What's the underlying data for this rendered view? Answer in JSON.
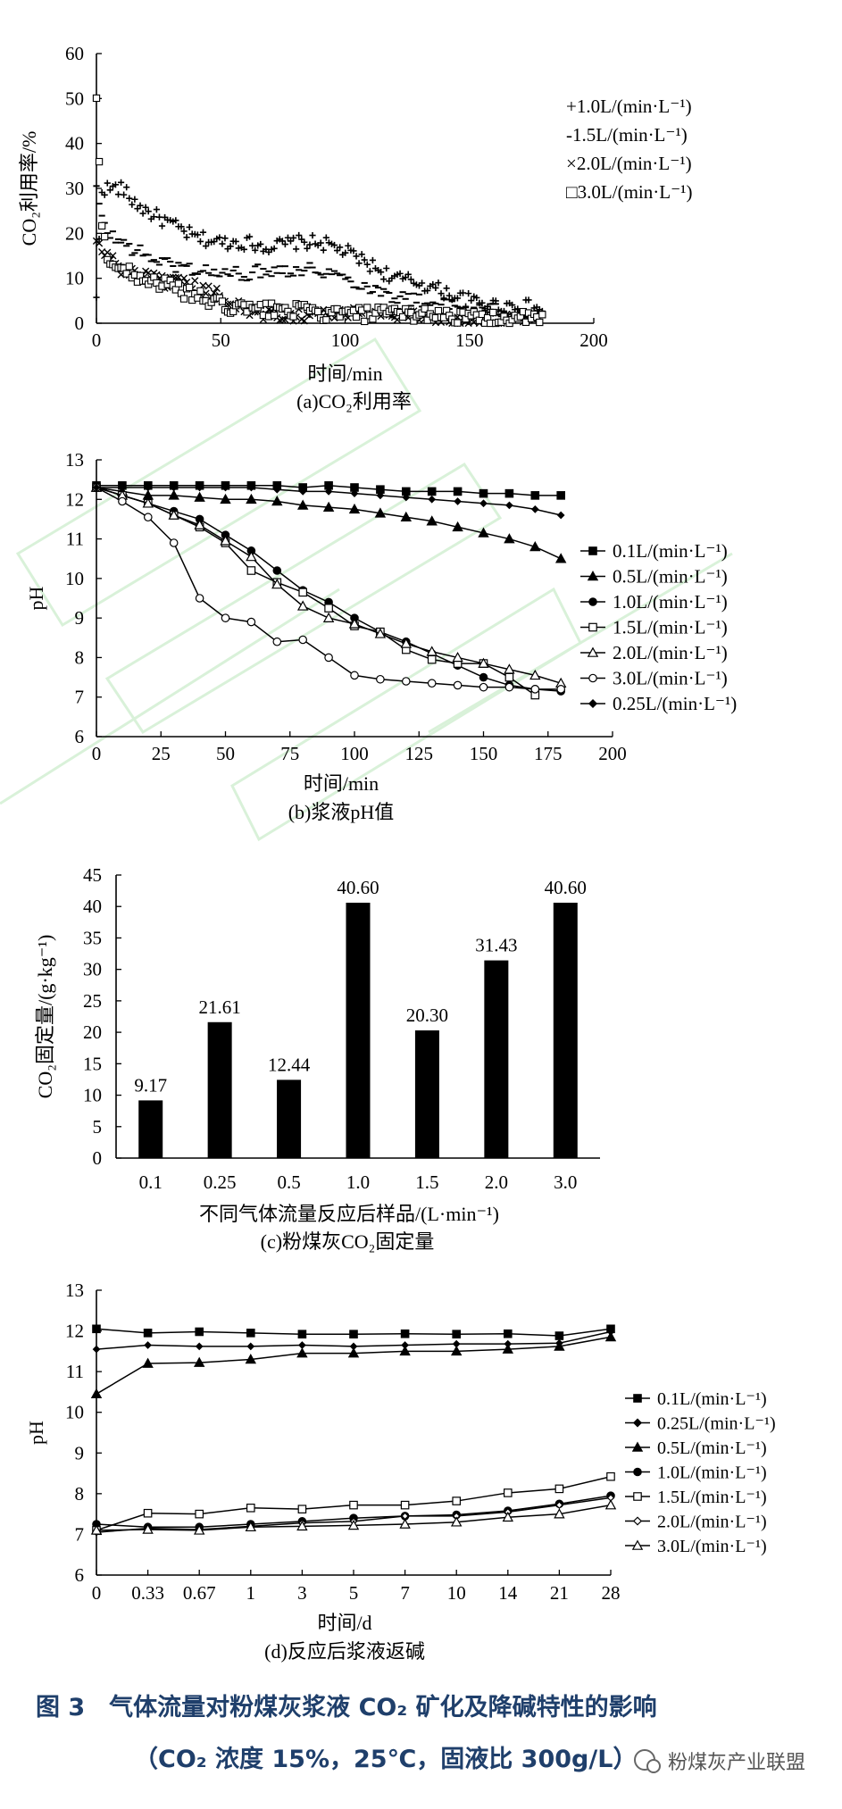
{
  "chart_data": [
    {
      "type": "scatter",
      "panel_label": "(a)CO₂利用率",
      "ylabel": "CO₂利用率/%",
      "xlabel": "时间/min",
      "xlim": [
        0,
        200
      ],
      "ylim": [
        0,
        60
      ],
      "xticks": [
        "0",
        "50",
        "100",
        "150",
        "200"
      ],
      "yticks": [
        "0",
        "10",
        "20",
        "30",
        "40",
        "50",
        "60"
      ],
      "legend": [
        "+1.0L/(min·L⁻¹)",
        "-1.5L/(min·L⁻¹)",
        "×2.0L/(min·L⁻¹)",
        "□3.0L/(min·L⁻¹)"
      ],
      "series": [
        {
          "name": "1.0L/(min·L⁻¹)",
          "marker": "+",
          "x": [
            0,
            2,
            5,
            10,
            15,
            20,
            30,
            40,
            50,
            60,
            70,
            80,
            90,
            100,
            110,
            120,
            130,
            140,
            150,
            160,
            170,
            180
          ],
          "y": [
            5,
            30,
            30,
            30,
            27,
            25,
            22,
            19,
            18,
            18,
            17,
            18,
            18,
            16,
            13,
            10,
            9,
            7,
            5,
            4,
            4,
            3
          ]
        },
        {
          "name": "1.5L/(min·L⁻¹)",
          "marker": "-",
          "x": [
            0,
            2,
            5,
            10,
            20,
            30,
            40,
            50,
            60,
            70,
            80,
            90,
            100,
            110,
            120,
            130,
            140,
            150,
            160,
            170,
            180
          ],
          "y": [
            30,
            23,
            20,
            18,
            15,
            13,
            12,
            11,
            11,
            12,
            12,
            12,
            10,
            8,
            6,
            5,
            4,
            3,
            3,
            2,
            2
          ]
        },
        {
          "name": "2.0L/(min·L⁻¹)",
          "marker": "×",
          "x": [
            0,
            2,
            5,
            10,
            20,
            30,
            40,
            50,
            60,
            70,
            80,
            90,
            100,
            110,
            120,
            130,
            140,
            150,
            160,
            170,
            180
          ],
          "y": [
            18,
            16,
            15,
            12,
            10,
            9,
            8,
            6,
            3,
            2,
            2,
            2,
            2,
            2,
            2,
            2,
            1,
            1,
            1,
            1,
            1
          ]
        },
        {
          "name": "3.0L/(min·L⁻¹)",
          "marker": "□",
          "x": [
            0,
            2,
            5,
            10,
            20,
            30,
            40,
            50,
            60,
            70,
            80,
            90,
            100,
            110,
            120,
            130,
            140,
            150,
            160,
            170,
            180
          ],
          "y": [
            50,
            22,
            14,
            12,
            10,
            8,
            6,
            4,
            3,
            3,
            3,
            2,
            2,
            2,
            2,
            2,
            2,
            1,
            1,
            1,
            1
          ]
        }
      ]
    },
    {
      "type": "line",
      "panel_label": "(b)浆液pH值",
      "ylabel": "pH",
      "xlabel": "时间/min",
      "xlim": [
        0,
        200
      ],
      "ylim": [
        6,
        13
      ],
      "xticks": [
        "0",
        "25",
        "50",
        "75",
        "100",
        "125",
        "150",
        "175",
        "200"
      ],
      "yticks": [
        "6",
        "7",
        "8",
        "9",
        "10",
        "11",
        "12",
        "13"
      ],
      "series": [
        {
          "name": "0.1L/(min·L⁻¹)",
          "marker": "square-filled",
          "x": [
            0,
            10,
            20,
            30,
            40,
            50,
            60,
            70,
            80,
            90,
            100,
            110,
            120,
            130,
            140,
            150,
            160,
            170,
            180
          ],
          "y": [
            12.35,
            12.35,
            12.35,
            12.35,
            12.35,
            12.35,
            12.35,
            12.35,
            12.3,
            12.35,
            12.3,
            12.25,
            12.2,
            12.2,
            12.2,
            12.15,
            12.15,
            12.1,
            12.1
          ]
        },
        {
          "name": "0.5L/(min·L⁻¹)",
          "marker": "triangle-filled",
          "x": [
            0,
            10,
            20,
            30,
            40,
            50,
            60,
            70,
            80,
            90,
            100,
            110,
            120,
            130,
            140,
            150,
            160,
            170,
            180
          ],
          "y": [
            12.3,
            12.2,
            12.1,
            12.1,
            12.05,
            12.0,
            12.0,
            11.95,
            11.85,
            11.8,
            11.75,
            11.65,
            11.55,
            11.45,
            11.3,
            11.15,
            11.0,
            10.8,
            10.5
          ]
        },
        {
          "name": "1.0L/(min·L⁻¹)",
          "marker": "circle-filled",
          "x": [
            0,
            10,
            20,
            30,
            40,
            50,
            60,
            70,
            80,
            90,
            100,
            110,
            120,
            130,
            140,
            150,
            160,
            170,
            180
          ],
          "y": [
            12.3,
            12.1,
            11.9,
            11.7,
            11.5,
            11.1,
            10.7,
            10.2,
            9.7,
            9.4,
            9.0,
            8.65,
            8.4,
            8.1,
            7.8,
            7.5,
            7.3,
            7.2,
            7.15
          ]
        },
        {
          "name": "1.5L/(min·L⁻¹)",
          "marker": "square-open",
          "x": [
            0,
            10,
            20,
            30,
            40,
            50,
            60,
            70,
            80,
            90,
            100,
            110,
            120,
            130,
            140,
            150,
            160,
            170
          ],
          "y": [
            12.3,
            12.1,
            11.9,
            11.6,
            11.3,
            10.9,
            10.2,
            9.9,
            9.65,
            9.25,
            8.8,
            8.65,
            8.2,
            7.95,
            7.85,
            7.85,
            7.5,
            7.05
          ]
        },
        {
          "name": "2.0L/(min·L⁻¹)",
          "marker": "triangle-open",
          "x": [
            0,
            10,
            20,
            30,
            40,
            50,
            60,
            70,
            80,
            90,
            100,
            110,
            120,
            130,
            140,
            150,
            160,
            170,
            180
          ],
          "y": [
            12.3,
            12.1,
            11.9,
            11.6,
            11.35,
            10.95,
            10.55,
            9.85,
            9.3,
            9.0,
            8.85,
            8.6,
            8.35,
            8.15,
            8.0,
            7.85,
            7.7,
            7.55,
            7.35
          ]
        },
        {
          "name": "3.0L/(min·L⁻¹)",
          "marker": "circle-open",
          "x": [
            0,
            10,
            20,
            30,
            40,
            50,
            60,
            70,
            80,
            90,
            100,
            110,
            120,
            130,
            140,
            150,
            160,
            170,
            180
          ],
          "y": [
            12.3,
            11.95,
            11.55,
            10.9,
            9.5,
            9.0,
            8.9,
            8.4,
            8.45,
            8.0,
            7.55,
            7.45,
            7.4,
            7.35,
            7.3,
            7.25,
            7.25,
            7.2,
            7.2
          ]
        },
        {
          "name": "0.25L/(min·L⁻¹)",
          "marker": "diamond-filled",
          "x": [
            0,
            10,
            20,
            30,
            40,
            50,
            60,
            70,
            80,
            90,
            100,
            110,
            120,
            130,
            140,
            150,
            160,
            170,
            180
          ],
          "y": [
            12.3,
            12.3,
            12.3,
            12.3,
            12.3,
            12.3,
            12.3,
            12.25,
            12.2,
            12.2,
            12.15,
            12.1,
            12.05,
            12.0,
            11.95,
            11.9,
            11.85,
            11.75,
            11.6
          ]
        }
      ]
    },
    {
      "type": "bar",
      "panel_label": "(c)粉煤灰CO₂固定量",
      "ylabel": "CO₂固定量/(g·kg⁻¹)",
      "xlabel": "不同气体流量反应后样品/(L·min⁻¹)",
      "ylim": [
        0,
        45
      ],
      "yticks": [
        "0",
        "5",
        "10",
        "15",
        "20",
        "25",
        "30",
        "35",
        "40",
        "45"
      ],
      "categories": [
        "0.1",
        "0.25",
        "0.5",
        "1.0",
        "1.5",
        "2.0",
        "3.0"
      ],
      "values": [
        9.17,
        21.61,
        12.44,
        40.6,
        20.3,
        31.43,
        40.6
      ],
      "value_labels": [
        "9.17",
        "21.61",
        "12.44",
        "40.60",
        "20.30",
        "31.43",
        "40.60"
      ]
    },
    {
      "type": "line",
      "panel_label": "(d)反应后浆液返碱",
      "ylabel": "pH",
      "xlabel": "时间/d",
      "ylim": [
        6,
        13
      ],
      "categories": [
        "0",
        "0.33",
        "0.67",
        "1",
        "3",
        "5",
        "7",
        "10",
        "14",
        "21",
        "28"
      ],
      "yticks": [
        "6",
        "7",
        "8",
        "9",
        "10",
        "11",
        "12",
        "13"
      ],
      "series": [
        {
          "name": "0.1L/(min·L⁻¹)",
          "marker": "square-filled",
          "values": [
            12.05,
            11.95,
            11.98,
            11.95,
            11.92,
            11.92,
            11.93,
            11.92,
            11.93,
            11.88,
            12.05
          ]
        },
        {
          "name": "0.25L/(min·L⁻¹)",
          "marker": "diamond-filled",
          "values": [
            11.55,
            11.65,
            11.62,
            11.62,
            11.65,
            11.62,
            11.65,
            11.68,
            11.68,
            11.7,
            11.98
          ]
        },
        {
          "name": "0.5L/(min·L⁻¹)",
          "marker": "triangle-filled",
          "values": [
            10.45,
            11.2,
            11.22,
            11.3,
            11.45,
            11.45,
            11.5,
            11.5,
            11.55,
            11.62,
            11.85
          ]
        },
        {
          "name": "1.0L/(min·L⁻¹)",
          "marker": "circle-filled",
          "values": [
            7.25,
            7.18,
            7.18,
            7.25,
            7.32,
            7.4,
            7.45,
            7.48,
            7.58,
            7.75,
            7.95
          ]
        },
        {
          "name": "1.5L/(min·L⁻¹)",
          "marker": "square-open",
          "values": [
            7.1,
            7.52,
            7.5,
            7.65,
            7.62,
            7.72,
            7.72,
            7.82,
            8.02,
            8.12,
            8.42
          ]
        },
        {
          "name": "2.0L/(min·L⁻¹)",
          "marker": "diamond-open",
          "values": [
            7.05,
            7.15,
            7.12,
            7.2,
            7.28,
            7.32,
            7.45,
            7.45,
            7.55,
            7.72,
            7.9
          ]
        },
        {
          "name": "3.0L/(min·L⁻¹)",
          "marker": "triangle-open",
          "values": [
            7.1,
            7.12,
            7.1,
            7.18,
            7.2,
            7.22,
            7.25,
            7.3,
            7.42,
            7.5,
            7.72
          ]
        }
      ]
    }
  ],
  "figure": {
    "caption_line1": "图 3　气体流量对粉煤灰浆液 CO₂ 矿化及降碱特性的影响",
    "caption_line2": "（CO₂ 浓度 15%，25℃，固液比 300g/L）"
  },
  "watermark": {
    "text": "粉煤灰产业联盟"
  },
  "colors": {
    "ink": "#000000",
    "caption": "#1f3f6b",
    "watermark_green": "#c9ecc9"
  }
}
